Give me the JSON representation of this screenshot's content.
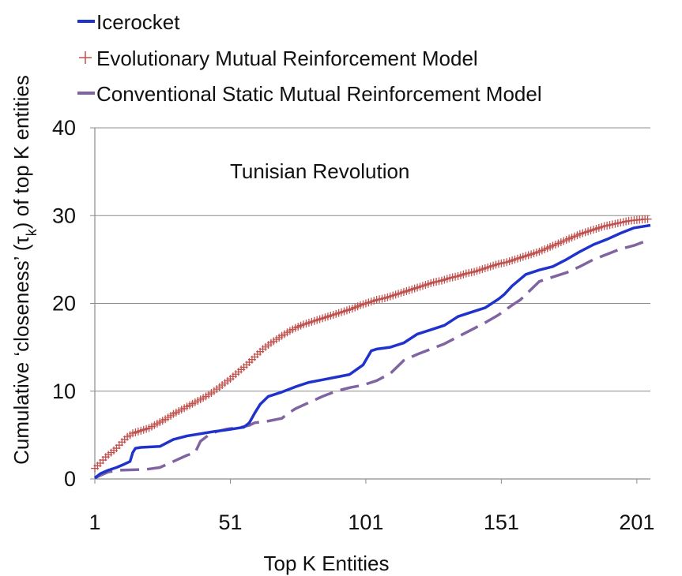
{
  "chart_data": {
    "type": "line",
    "title": "",
    "annotation": "Tunisian Revolution",
    "xlabel": "Top K Entities",
    "ylabel_pre": "Cumulative ‘closeness’ (τ",
    "ylabel_sub": "k",
    "ylabel_post": ") of top K entities",
    "xlim": [
      1,
      206
    ],
    "ylim": [
      0,
      40
    ],
    "x_ticks": [
      "1",
      "51",
      "101",
      "151",
      "201"
    ],
    "x_tick_values": [
      1,
      51,
      101,
      151,
      201
    ],
    "y_ticks": [
      "0",
      "10",
      "20",
      "30",
      "40"
    ],
    "y_tick_values": [
      0,
      10,
      20,
      30,
      40
    ],
    "grid": "horizontal",
    "legend_position": "top-left",
    "series": [
      {
        "name": "Icerocket",
        "style": "solid",
        "color": "#1f33cc",
        "x": [
          1,
          3,
          6,
          9,
          12,
          14,
          15,
          16,
          18,
          25,
          30,
          35,
          45,
          50,
          56,
          58,
          60,
          62,
          65,
          70,
          75,
          80,
          85,
          90,
          95,
          100,
          103,
          105,
          110,
          115,
          120,
          125,
          130,
          135,
          140,
          145,
          150,
          152,
          155,
          160,
          165,
          170,
          175,
          180,
          185,
          190,
          195,
          200,
          206
        ],
        "y": [
          0.1,
          0.6,
          1.0,
          1.3,
          1.7,
          2.0,
          3.0,
          3.5,
          3.6,
          3.7,
          4.5,
          4.9,
          5.4,
          5.6,
          5.9,
          6.4,
          7.5,
          8.5,
          9.4,
          9.9,
          10.5,
          11.0,
          11.3,
          11.6,
          11.9,
          13.0,
          14.6,
          14.8,
          15.0,
          15.5,
          16.5,
          17.0,
          17.5,
          18.5,
          19.0,
          19.5,
          20.5,
          21.0,
          22.0,
          23.3,
          23.8,
          24.2,
          25.0,
          25.9,
          26.7,
          27.3,
          28.0,
          28.6,
          28.9
        ]
      },
      {
        "name": "Evolutionary Mutual Reinforcement Model",
        "style": "plus",
        "color": "#c0504d",
        "x": [
          1,
          3,
          5,
          7,
          9,
          11,
          13,
          15,
          18,
          21,
          24,
          27,
          30,
          33,
          36,
          39,
          42,
          45,
          48,
          51,
          54,
          57,
          60,
          63,
          66,
          69,
          72,
          75,
          78,
          81,
          84,
          87,
          90,
          93,
          96,
          99,
          102,
          105,
          108,
          111,
          114,
          117,
          120,
          123,
          126,
          129,
          132,
          135,
          138,
          141,
          144,
          147,
          150,
          153,
          156,
          159,
          162,
          165,
          168,
          171,
          174,
          177,
          180,
          183,
          186,
          189,
          192,
          195,
          198,
          201,
          204,
          206
        ],
        "y": [
          1.2,
          1.8,
          2.5,
          3.0,
          3.5,
          4.2,
          4.8,
          5.2,
          5.5,
          5.8,
          6.3,
          6.8,
          7.4,
          7.9,
          8.4,
          8.9,
          9.4,
          10.0,
          10.7,
          11.4,
          12.2,
          13.0,
          13.9,
          14.8,
          15.5,
          16.1,
          16.7,
          17.2,
          17.6,
          17.9,
          18.2,
          18.5,
          18.8,
          19.1,
          19.4,
          19.8,
          20.1,
          20.4,
          20.6,
          20.9,
          21.2,
          21.5,
          21.8,
          22.1,
          22.4,
          22.6,
          22.9,
          23.1,
          23.4,
          23.6,
          23.9,
          24.2,
          24.5,
          24.7,
          25.0,
          25.3,
          25.6,
          25.9,
          26.3,
          26.7,
          27.1,
          27.5,
          27.9,
          28.2,
          28.5,
          28.8,
          29.0,
          29.2,
          29.4,
          29.5,
          29.6,
          29.6
        ]
      },
      {
        "name": "Conventional Static Mutual Reinforcement Model",
        "style": "dashed",
        "color": "#8064a2",
        "x": [
          1,
          3,
          6,
          10,
          20,
          25,
          30,
          35,
          38,
          40,
          43,
          46,
          50,
          55,
          58,
          60,
          65,
          70,
          72,
          75,
          80,
          85,
          90,
          95,
          100,
          105,
          110,
          115,
          120,
          125,
          130,
          135,
          140,
          145,
          150,
          155,
          158,
          160,
          165,
          170,
          175,
          180,
          185,
          190,
          195,
          200,
          206
        ],
        "y": [
          0.1,
          0.4,
          0.8,
          1.0,
          1.1,
          1.3,
          2.0,
          2.7,
          3.0,
          4.3,
          5.0,
          5.4,
          5.7,
          5.9,
          6.1,
          6.4,
          6.6,
          6.9,
          7.4,
          8.0,
          8.7,
          9.4,
          10.0,
          10.4,
          10.7,
          11.2,
          12.0,
          13.5,
          14.2,
          14.8,
          15.4,
          16.2,
          17.0,
          17.8,
          18.7,
          19.8,
          20.4,
          21.0,
          22.5,
          23.0,
          23.5,
          24.2,
          25.0,
          25.6,
          26.2,
          26.6,
          27.3
        ]
      }
    ]
  }
}
